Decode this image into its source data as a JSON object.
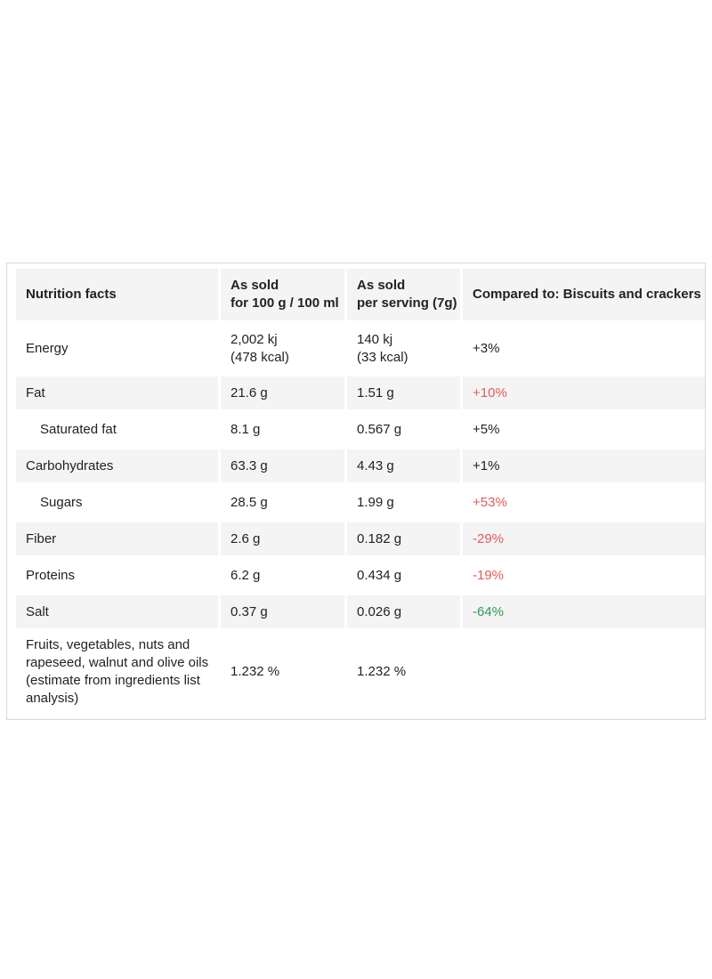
{
  "table": {
    "headers": {
      "nutrient": "Nutrition facts",
      "per100": "As sold\nfor 100 g / 100 ml",
      "perServing": "As sold\nper serving (7g)",
      "compared": "Compared to: Biscuits and crackers"
    },
    "rows": [
      {
        "name": "Energy",
        "per100": "2,002 kj\n(478 kcal)",
        "perServing": "140 kj\n(33 kcal)",
        "compared": "+3%"
      },
      {
        "name": "Fat",
        "per100": "21.6 g",
        "perServing": "1.51 g",
        "compared": "+10%"
      },
      {
        "name": "Saturated fat",
        "per100": "8.1 g",
        "perServing": "0.567 g",
        "compared": "+5%"
      },
      {
        "name": "Carbohydrates",
        "per100": "63.3 g",
        "perServing": "4.43 g",
        "compared": "+1%"
      },
      {
        "name": "Sugars",
        "per100": "28.5 g",
        "perServing": "1.99 g",
        "compared": "+53%"
      },
      {
        "name": "Fiber",
        "per100": "2.6 g",
        "perServing": "0.182 g",
        "compared": "-29%"
      },
      {
        "name": "Proteins",
        "per100": "6.2 g",
        "perServing": "0.434 g",
        "compared": "-19%"
      },
      {
        "name": "Salt",
        "per100": "0.37 g",
        "perServing": "0.026 g",
        "compared": "-64%"
      },
      {
        "name": "Fruits, vegetables, nuts and rapeseed, walnut and olive oils (estimate from ingredients list analysis)",
        "per100": "1.232 %",
        "perServing": "1.232 %",
        "compared": ""
      }
    ]
  },
  "colors": {
    "comparison_bad": "#e35b5b",
    "comparison_good": "#2e9a55",
    "header_background": "#f4f4f5"
  }
}
